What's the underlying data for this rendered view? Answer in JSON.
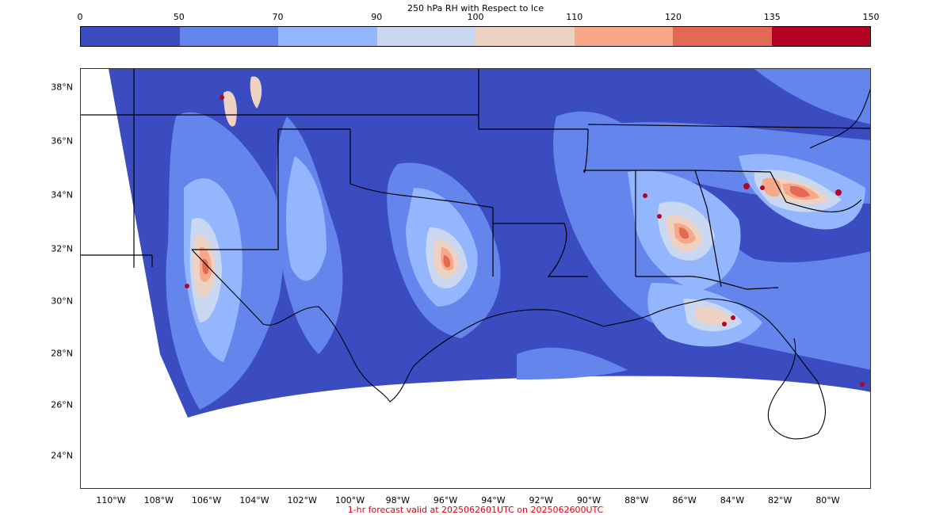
{
  "colorbar": {
    "title": "250 hPa RH with Respect to Ice",
    "ticks": [
      "0",
      "50",
      "70",
      "90",
      "100",
      "110",
      "120",
      "135",
      "150"
    ],
    "colors": [
      "#3b4cc0",
      "#6485ec",
      "#94b6ff",
      "#c9d7f0",
      "#edd1c2",
      "#f7a889",
      "#e26952",
      "#b40426"
    ]
  },
  "map": {
    "lat_labels": [
      "38°N",
      "36°N",
      "34°N",
      "32°N",
      "30°N",
      "28°N",
      "26°N",
      "24°N"
    ],
    "lon_labels": [
      "110°W",
      "108°W",
      "106°W",
      "104°W",
      "102°W",
      "100°W",
      "98°W",
      "96°W",
      "94°W",
      "92°W",
      "90°W",
      "88°W",
      "86°W",
      "84°W",
      "82°W",
      "80°W"
    ],
    "footer": "1-hr forecast valid at 2025062601UTC on 2025062600UTC",
    "footer_color": "#e8000b"
  }
}
